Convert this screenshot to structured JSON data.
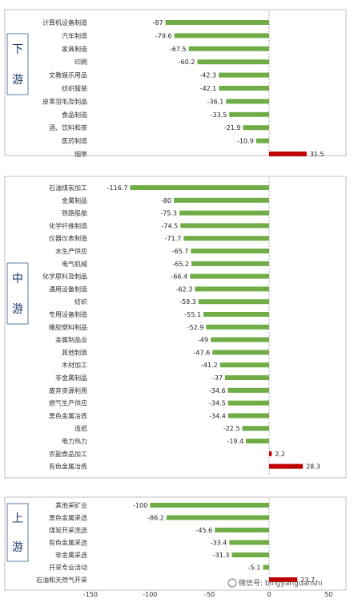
{
  "chart_data": {
    "type": "bar",
    "orientation": "horizontal",
    "xlim": [
      -150,
      50
    ],
    "x_ticks": [
      -150,
      -100,
      -50,
      0,
      50
    ],
    "grid": false,
    "colors": {
      "negative": "#70ad47",
      "positive": "#c00000",
      "frame": "#5b7ea6",
      "zero_line": "#a6a6a6"
    },
    "panels": [
      {
        "label": "下游",
        "categories": [
          "计算机设备制造",
          "汽车制造",
          "家具制造",
          "印刷",
          "文教娱乐用品",
          "纺织服装",
          "皮革羽毛及制品",
          "食品制造",
          "酒、饮料和茶",
          "医药制造",
          "烟草"
        ],
        "values": [
          -87,
          -79.6,
          -67.5,
          -60.2,
          -42.3,
          -42.1,
          -36.1,
          -33.5,
          -21.9,
          -10.9,
          31.5
        ]
      },
      {
        "label": "中游",
        "categories": [
          "石油煤炭加工",
          "金属制品",
          "铁路船舶",
          "化学纤维制造",
          "仪器仪表制造",
          "水生产供应",
          "电气机械",
          "化学原料及制品",
          "通用设备制造",
          "纺织",
          "专用设备制造",
          "橡胶塑料制品",
          "金属制品业",
          "其他制造",
          "木材加工",
          "非金属制品",
          "废弃资源利用",
          "燃气生产供应",
          "黑色金属冶炼",
          "造纸",
          "电力热力",
          "农副食品加工",
          "有色金属冶炼"
        ],
        "values": [
          -116.7,
          -80,
          -75.3,
          -74.5,
          -71.7,
          -65.7,
          -65.2,
          -66.4,
          -62.3,
          -59.3,
          -55.1,
          -52.9,
          -49,
          -47.6,
          -41.2,
          -37,
          -34.6,
          -34.5,
          -34.4,
          -22.5,
          -19.4,
          2.2,
          28.3
        ]
      },
      {
        "label": "上游",
        "categories": [
          "其他采矿业",
          "黑色金属采选",
          "煤炭开采洗选",
          "有色金属采选",
          "非金属采选",
          "开采专业活动",
          "石油和天然气开采"
        ],
        "values": [
          -100,
          -86.2,
          -45.6,
          -33.4,
          -31.3,
          -5.1,
          23.7
        ]
      }
    ]
  },
  "watermark": {
    "text": "微信号: bingyanguanshi",
    "icon": "wechat-icon"
  }
}
